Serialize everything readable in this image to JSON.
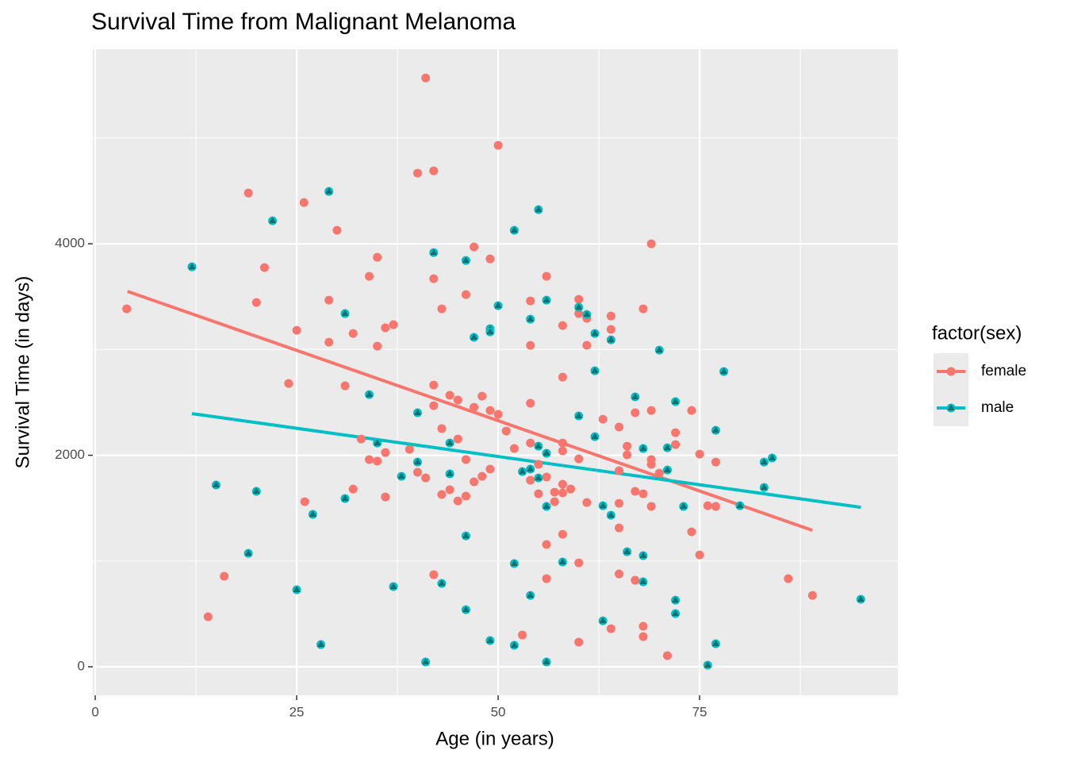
{
  "chart_data": {
    "type": "scatter",
    "title": "Survival Time from Malignant Melanoma",
    "x_label": "Age (in years)",
    "y_label": "Survival Time (in days)",
    "legend_title": "factor(sex)",
    "legend_position": "right",
    "grid": true,
    "xlim": [
      -0.3,
      99.6
    ],
    "ylim": [
      -270,
      5840
    ],
    "xticks": [
      0,
      25,
      50,
      75
    ],
    "yticks": [
      0,
      2000,
      4000
    ],
    "xminor": [
      12.5,
      37.5,
      62.5,
      87.5
    ],
    "yminor": [
      1000,
      3000,
      5000
    ],
    "series": [
      {
        "name": "female",
        "color": "#F8766D",
        "marker": "circle",
        "x": [
          3.9,
          19,
          25.9,
          30,
          21,
          20,
          25,
          29,
          29,
          35,
          34,
          37,
          36,
          32,
          35,
          24,
          31,
          33,
          34,
          35,
          36,
          36,
          32,
          26,
          14,
          16,
          41,
          40,
          42,
          50,
          42,
          43,
          47,
          49,
          46,
          42,
          42,
          44,
          45,
          48,
          47,
          49,
          50,
          43,
          51,
          45,
          39,
          40,
          41,
          46,
          49,
          48,
          47,
          44,
          43,
          45,
          46,
          42,
          52,
          53,
          56,
          54,
          54,
          54,
          54,
          58,
          58,
          60,
          60,
          61,
          61,
          58,
          58,
          60,
          55,
          56,
          54,
          58,
          59,
          57,
          55,
          58,
          57,
          61,
          58,
          56,
          60,
          56,
          60,
          64,
          64,
          63,
          65,
          66,
          66,
          67,
          69,
          69,
          68,
          69,
          69,
          65,
          65,
          69,
          67,
          68,
          65,
          65,
          67,
          64,
          68,
          68,
          71,
          70,
          72,
          72,
          74,
          75,
          77,
          74,
          75,
          76,
          77,
          86,
          89
        ],
        "values": [
          3385,
          4480,
          4390,
          4128,
          3775,
          3445,
          3182,
          3467,
          3069,
          3872,
          3692,
          3235,
          3205,
          3152,
          3032,
          2679,
          2657,
          2154,
          1959,
          1944,
          2026,
          1606,
          1681,
          1561,
          473,
          856,
          5568,
          4668,
          4690,
          4931,
          3670,
          3385,
          3970,
          3857,
          3520,
          2664,
          2469,
          2567,
          2522,
          2559,
          2454,
          2424,
          2387,
          2252,
          2229,
          2154,
          2056,
          1839,
          1786,
          1959,
          1869,
          1801,
          1749,
          1674,
          1629,
          1568,
          1614,
          871,
          2064,
          300,
          3692,
          3460,
          3039,
          2492,
          2116,
          2739,
          3227,
          3475,
          3340,
          3295,
          3040,
          2116,
          2041,
          1966,
          1914,
          1794,
          1764,
          1726,
          1681,
          1651,
          1636,
          1644,
          1561,
          1553,
          1253,
          1156,
          983,
          833,
          233,
          3317,
          3190,
          2341,
          2267,
          2086,
          2004,
          2402,
          2424,
          4000,
          3385,
          1959,
          1914,
          1854,
          1546,
          1516,
          1659,
          1636,
          1313,
          878,
          818,
          360,
          383,
          285,
          105,
          1831,
          2214,
          2101,
          2424,
          2011,
          1936,
          1276,
          1058,
          1523,
          1516,
          833,
          675
        ],
        "fit": {
          "x": [
            4,
            89
          ],
          "y": [
            3550,
            1290
          ]
        }
      },
      {
        "name": "male",
        "color": "#00BFC4",
        "marker": "triangle",
        "x": [
          12,
          15,
          20,
          19,
          22,
          25,
          28,
          27,
          29,
          31,
          31,
          34,
          35,
          37,
          38,
          40,
          40,
          41,
          42,
          43,
          44,
          44,
          46,
          46,
          46,
          47,
          49,
          49,
          50,
          49,
          52,
          52,
          52,
          53,
          54,
          54,
          54,
          55,
          55,
          55,
          56,
          56,
          56,
          56,
          58,
          60,
          60,
          61,
          62,
          62,
          62,
          63,
          63,
          64,
          64,
          66,
          67,
          68,
          68,
          68,
          70,
          71,
          71,
          72,
          72,
          72,
          73,
          76,
          77,
          77,
          78,
          80,
          83,
          83,
          84,
          95
        ],
        "values": [
          3782,
          1719,
          1659,
          1073,
          4218,
          728,
          210,
          1441,
          4495,
          3340,
          1591,
          2574,
          2116,
          758,
          1801,
          2402,
          1936,
          45,
          3917,
          788,
          2116,
          1824,
          3842,
          1238,
          540,
          3115,
          3197,
          3167,
          3415,
          248,
          4128,
          976,
          203,
          1846,
          1869,
          3287,
          675,
          4323,
          2086,
          1786,
          2019,
          3467,
          1516,
          45,
          991,
          3400,
          2372,
          3332,
          3152,
          2799,
          2176,
          1523,
          435,
          3092,
          1433,
          1088,
          2552,
          2064,
          1051,
          803,
          2994,
          2071,
          1861,
          2507,
          630,
          503,
          1516,
          15,
          2236,
          218,
          2792,
          1523,
          1936,
          1696,
          1974,
          638
        ],
        "fit": {
          "x": [
            12,
            95
          ],
          "y": [
            2394,
            1508
          ]
        }
      }
    ]
  }
}
